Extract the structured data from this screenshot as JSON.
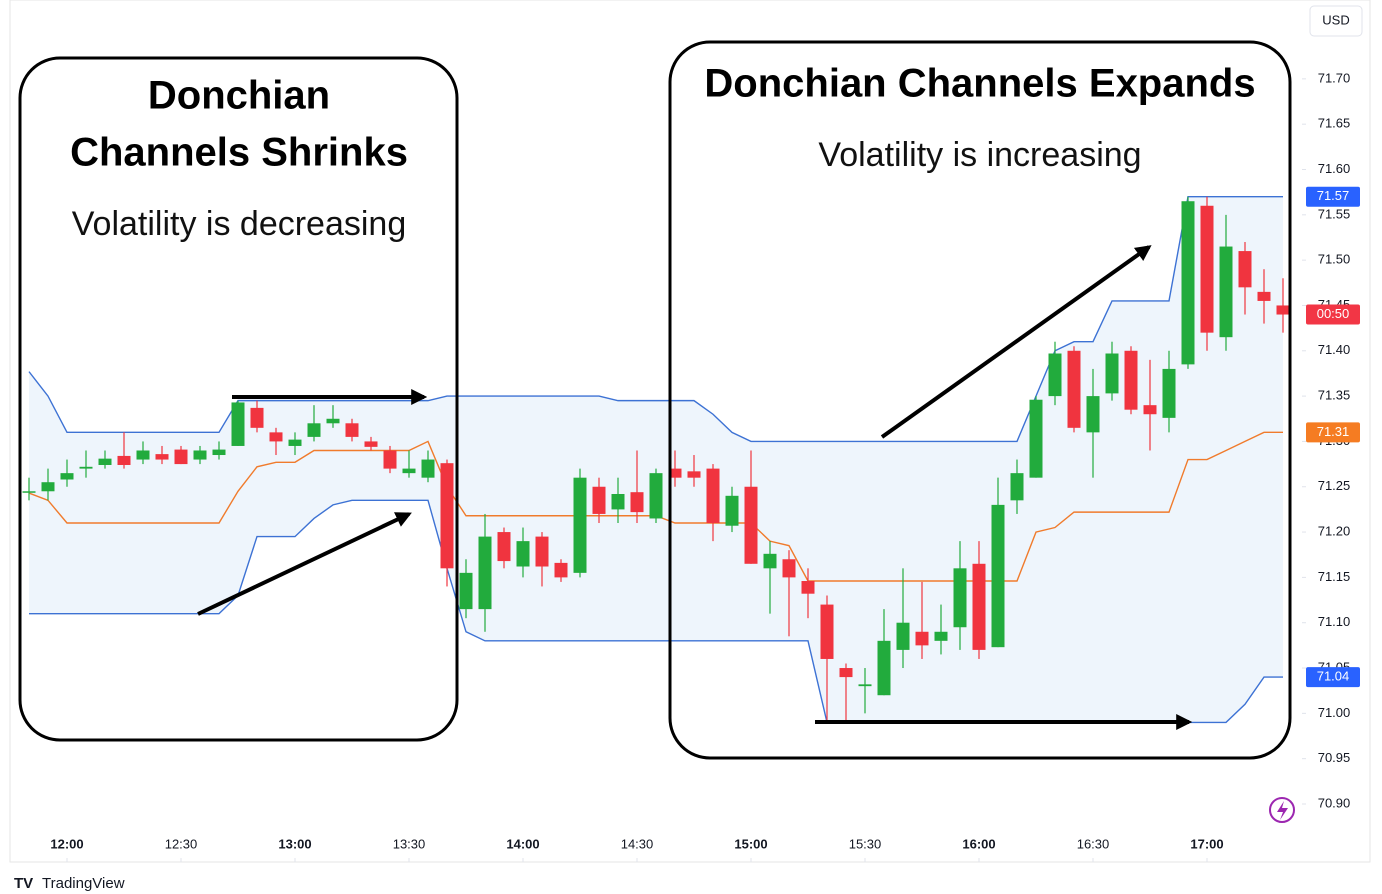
{
  "chart_data": {
    "type": "candlestick",
    "currency": "USD",
    "brand": "TradingView",
    "up_color": "#22ab3d",
    "down_color": "#f0343f",
    "x": [
      "11:50",
      "11:55",
      "12:00",
      "12:05",
      "12:10",
      "12:15",
      "12:20",
      "12:25",
      "12:30",
      "12:35",
      "12:40",
      "12:45",
      "12:50",
      "12:55",
      "13:00",
      "13:05",
      "13:10",
      "13:15",
      "13:20",
      "13:25",
      "13:30",
      "13:35",
      "13:40",
      "13:45",
      "13:50",
      "13:55",
      "14:00",
      "14:05",
      "14:10",
      "14:15",
      "14:20",
      "14:25",
      "14:30",
      "14:35",
      "14:40",
      "14:45",
      "14:50",
      "14:55",
      "15:00",
      "15:05",
      "15:10",
      "15:15",
      "15:20",
      "15:25",
      "15:30",
      "15:35",
      "15:40",
      "15:45",
      "15:50",
      "15:55",
      "16:00",
      "16:05",
      "16:10",
      "16:15",
      "16:20",
      "16:25",
      "16:30",
      "16:35",
      "16:40",
      "16:45",
      "16:50",
      "16:55",
      "17:00",
      "17:05",
      "17:10",
      "17:15",
      "17:20"
    ],
    "open": [
      71.245,
      71.245,
      71.258,
      71.27,
      71.274,
      71.284,
      71.28,
      71.286,
      71.291,
      71.28,
      71.285,
      71.295,
      71.337,
      71.31,
      71.295,
      71.305,
      71.32,
      71.32,
      71.3,
      71.29,
      71.265,
      71.26,
      71.276,
      71.115,
      71.115,
      71.2,
      71.162,
      71.195,
      71.166,
      71.155,
      71.25,
      71.225,
      71.244,
      71.215,
      71.27,
      71.267,
      71.27,
      71.207,
      71.25,
      71.16,
      71.17,
      71.146,
      71.12,
      71.05,
      71.03,
      71.02,
      71.07,
      71.09,
      71.08,
      71.095,
      71.165,
      71.073,
      71.235,
      71.26,
      71.35,
      71.4,
      71.31,
      71.353,
      71.4,
      71.34,
      71.326,
      71.385,
      71.56,
      71.415,
      71.51,
      71.465,
      71.45
    ],
    "high": [
      71.26,
      71.27,
      71.28,
      71.29,
      71.29,
      71.31,
      71.3,
      71.295,
      71.295,
      71.295,
      71.3,
      71.345,
      71.345,
      71.315,
      71.31,
      71.34,
      71.34,
      71.325,
      71.305,
      71.295,
      71.29,
      71.29,
      71.28,
      71.17,
      71.22,
      71.205,
      71.205,
      71.2,
      71.17,
      71.27,
      71.26,
      71.26,
      71.29,
      71.27,
      71.29,
      71.285,
      71.275,
      71.25,
      71.29,
      71.19,
      71.18,
      71.16,
      71.13,
      71.055,
      71.05,
      71.115,
      71.16,
      71.145,
      71.12,
      71.19,
      71.19,
      71.26,
      71.28,
      71.35,
      71.41,
      71.405,
      71.38,
      71.41,
      71.405,
      71.39,
      71.4,
      71.57,
      71.57,
      71.55,
      71.52,
      71.49,
      71.48
    ],
    "low": [
      71.235,
      71.235,
      71.25,
      71.26,
      71.27,
      71.27,
      71.275,
      71.275,
      71.275,
      71.275,
      71.28,
      71.295,
      71.31,
      71.285,
      71.285,
      71.3,
      71.315,
      71.3,
      71.29,
      71.265,
      71.26,
      71.255,
      71.14,
      71.105,
      71.09,
      71.16,
      71.15,
      71.14,
      71.145,
      71.15,
      71.21,
      71.21,
      71.21,
      71.21,
      71.25,
      71.25,
      71.19,
      71.2,
      71.165,
      71.11,
      71.085,
      71.105,
      70.99,
      70.99,
      71.0,
      71.02,
      71.05,
      71.06,
      71.065,
      71.07,
      71.06,
      71.073,
      71.22,
      71.26,
      71.34,
      71.31,
      71.26,
      71.345,
      71.33,
      71.29,
      71.31,
      71.38,
      71.4,
      71.4,
      71.44,
      71.43,
      71.42
    ],
    "close": [
      71.245,
      71.255,
      71.265,
      71.272,
      71.281,
      71.274,
      71.29,
      71.28,
      71.275,
      71.29,
      71.291,
      71.343,
      71.315,
      71.3,
      71.302,
      71.32,
      71.325,
      71.305,
      71.294,
      71.27,
      71.27,
      71.28,
      71.16,
      71.155,
      71.195,
      71.168,
      71.19,
      71.162,
      71.15,
      71.26,
      71.22,
      71.242,
      71.222,
      71.265,
      71.26,
      71.26,
      71.21,
      71.24,
      71.165,
      71.176,
      71.15,
      71.132,
      71.06,
      71.04,
      71.032,
      71.08,
      71.1,
      71.075,
      71.09,
      71.16,
      71.07,
      71.23,
      71.265,
      71.346,
      71.397,
      71.315,
      71.35,
      71.397,
      71.335,
      71.33,
      71.38,
      71.565,
      71.42,
      71.515,
      71.47,
      71.455,
      71.44
    ],
    "channel": {
      "upper_color": "#3d72d4",
      "middle_color": "#f07b2c",
      "fill_color": "#eef5fc",
      "upper": [
        71.377,
        71.35,
        71.31,
        71.31,
        71.31,
        71.31,
        71.31,
        71.31,
        71.31,
        71.31,
        71.31,
        71.345,
        71.345,
        71.345,
        71.345,
        71.345,
        71.345,
        71.345,
        71.345,
        71.345,
        71.345,
        71.345,
        71.35,
        71.35,
        71.35,
        71.35,
        71.35,
        71.35,
        71.35,
        71.35,
        71.35,
        71.345,
        71.345,
        71.345,
        71.345,
        71.345,
        71.33,
        71.31,
        71.3,
        71.3,
        71.3,
        71.3,
        71.3,
        71.3,
        71.3,
        71.3,
        71.3,
        71.3,
        71.3,
        71.3,
        71.3,
        71.3,
        71.3,
        71.35,
        71.4,
        71.41,
        71.41,
        71.455,
        71.455,
        71.455,
        71.455,
        71.57,
        71.57,
        71.57,
        71.57,
        71.57,
        71.57
      ],
      "middle": [
        71.243,
        71.235,
        71.21,
        71.21,
        71.21,
        71.21,
        71.21,
        71.21,
        71.21,
        71.21,
        71.21,
        71.245,
        71.272,
        71.277,
        71.277,
        71.29,
        71.29,
        71.29,
        71.29,
        71.29,
        71.29,
        71.3,
        71.25,
        71.218,
        71.218,
        71.218,
        71.218,
        71.218,
        71.218,
        71.218,
        71.218,
        71.218,
        71.218,
        71.218,
        71.21,
        71.21,
        71.21,
        71.21,
        71.21,
        71.19,
        71.185,
        71.146,
        71.146,
        71.146,
        71.146,
        71.146,
        71.146,
        71.146,
        71.146,
        71.146,
        71.146,
        71.146,
        71.146,
        71.2,
        71.205,
        71.222,
        71.222,
        71.222,
        71.222,
        71.222,
        71.222,
        71.28,
        71.28,
        71.29,
        71.3,
        71.31,
        71.31
      ],
      "lower": [
        71.11,
        71.11,
        71.11,
        71.11,
        71.11,
        71.11,
        71.11,
        71.11,
        71.11,
        71.11,
        71.11,
        71.13,
        71.195,
        71.195,
        71.195,
        71.215,
        71.23,
        71.235,
        71.235,
        71.235,
        71.235,
        71.235,
        71.16,
        71.09,
        71.08,
        71.08,
        71.08,
        71.08,
        71.08,
        71.08,
        71.08,
        71.08,
        71.08,
        71.08,
        71.08,
        71.08,
        71.08,
        71.08,
        71.08,
        71.08,
        71.08,
        71.08,
        70.99,
        70.99,
        70.99,
        70.99,
        70.99,
        70.99,
        70.99,
        70.99,
        70.99,
        70.99,
        70.99,
        70.99,
        70.99,
        70.99,
        70.99,
        70.99,
        70.99,
        70.99,
        70.99,
        70.99,
        70.99,
        70.99,
        71.01,
        71.04,
        71.04
      ]
    },
    "xlim": [
      "11:45",
      "17:25"
    ],
    "xticks": [
      "12:00",
      "12:30",
      "13:00",
      "13:30",
      "14:00",
      "14:30",
      "15:00",
      "15:30",
      "16:00",
      "16:30",
      "17:00"
    ],
    "ylim": [
      70.836,
      71.787
    ],
    "yticks": [
      {
        "value": 70.9,
        "label": "70.90"
      },
      {
        "value": 70.95,
        "label": "70.95"
      },
      {
        "value": 71.0,
        "label": "71.00"
      },
      {
        "value": 71.05,
        "label": "71.05"
      },
      {
        "value": 71.1,
        "label": "71.10"
      },
      {
        "value": 71.15,
        "label": "71.15"
      },
      {
        "value": 71.2,
        "label": "71.20"
      },
      {
        "value": 71.25,
        "label": "71.25"
      },
      {
        "value": 71.3,
        "label": "71.30"
      },
      {
        "value": 71.35,
        "label": "71.35"
      },
      {
        "value": 71.4,
        "label": "71.40"
      },
      {
        "value": 71.45,
        "label": "71.45"
      },
      {
        "value": 71.5,
        "label": "71.50"
      },
      {
        "value": 71.55,
        "label": "71.55"
      },
      {
        "value": 71.6,
        "label": "71.60"
      },
      {
        "value": 71.65,
        "label": "71.65"
      },
      {
        "value": 71.7,
        "label": "71.70"
      }
    ],
    "price_labels": [
      {
        "value": 71.57,
        "label": "71.57",
        "color": "#2962ff"
      },
      {
        "value": 71.44,
        "label": "00:50",
        "color": "#f23645"
      },
      {
        "value": 71.31,
        "label": "71.31",
        "color": "#f57c22"
      },
      {
        "value": 71.04,
        "label": "71.04",
        "color": "#2962ff"
      }
    ],
    "annotations": [
      {
        "title_lines": [
          "Donchian",
          "Channels Shrinks"
        ],
        "subtitle": "Volatility is decreasing"
      },
      {
        "title_lines": [
          "Donchian Channels Expands"
        ],
        "subtitle": "Volatility is increasing"
      }
    ]
  }
}
